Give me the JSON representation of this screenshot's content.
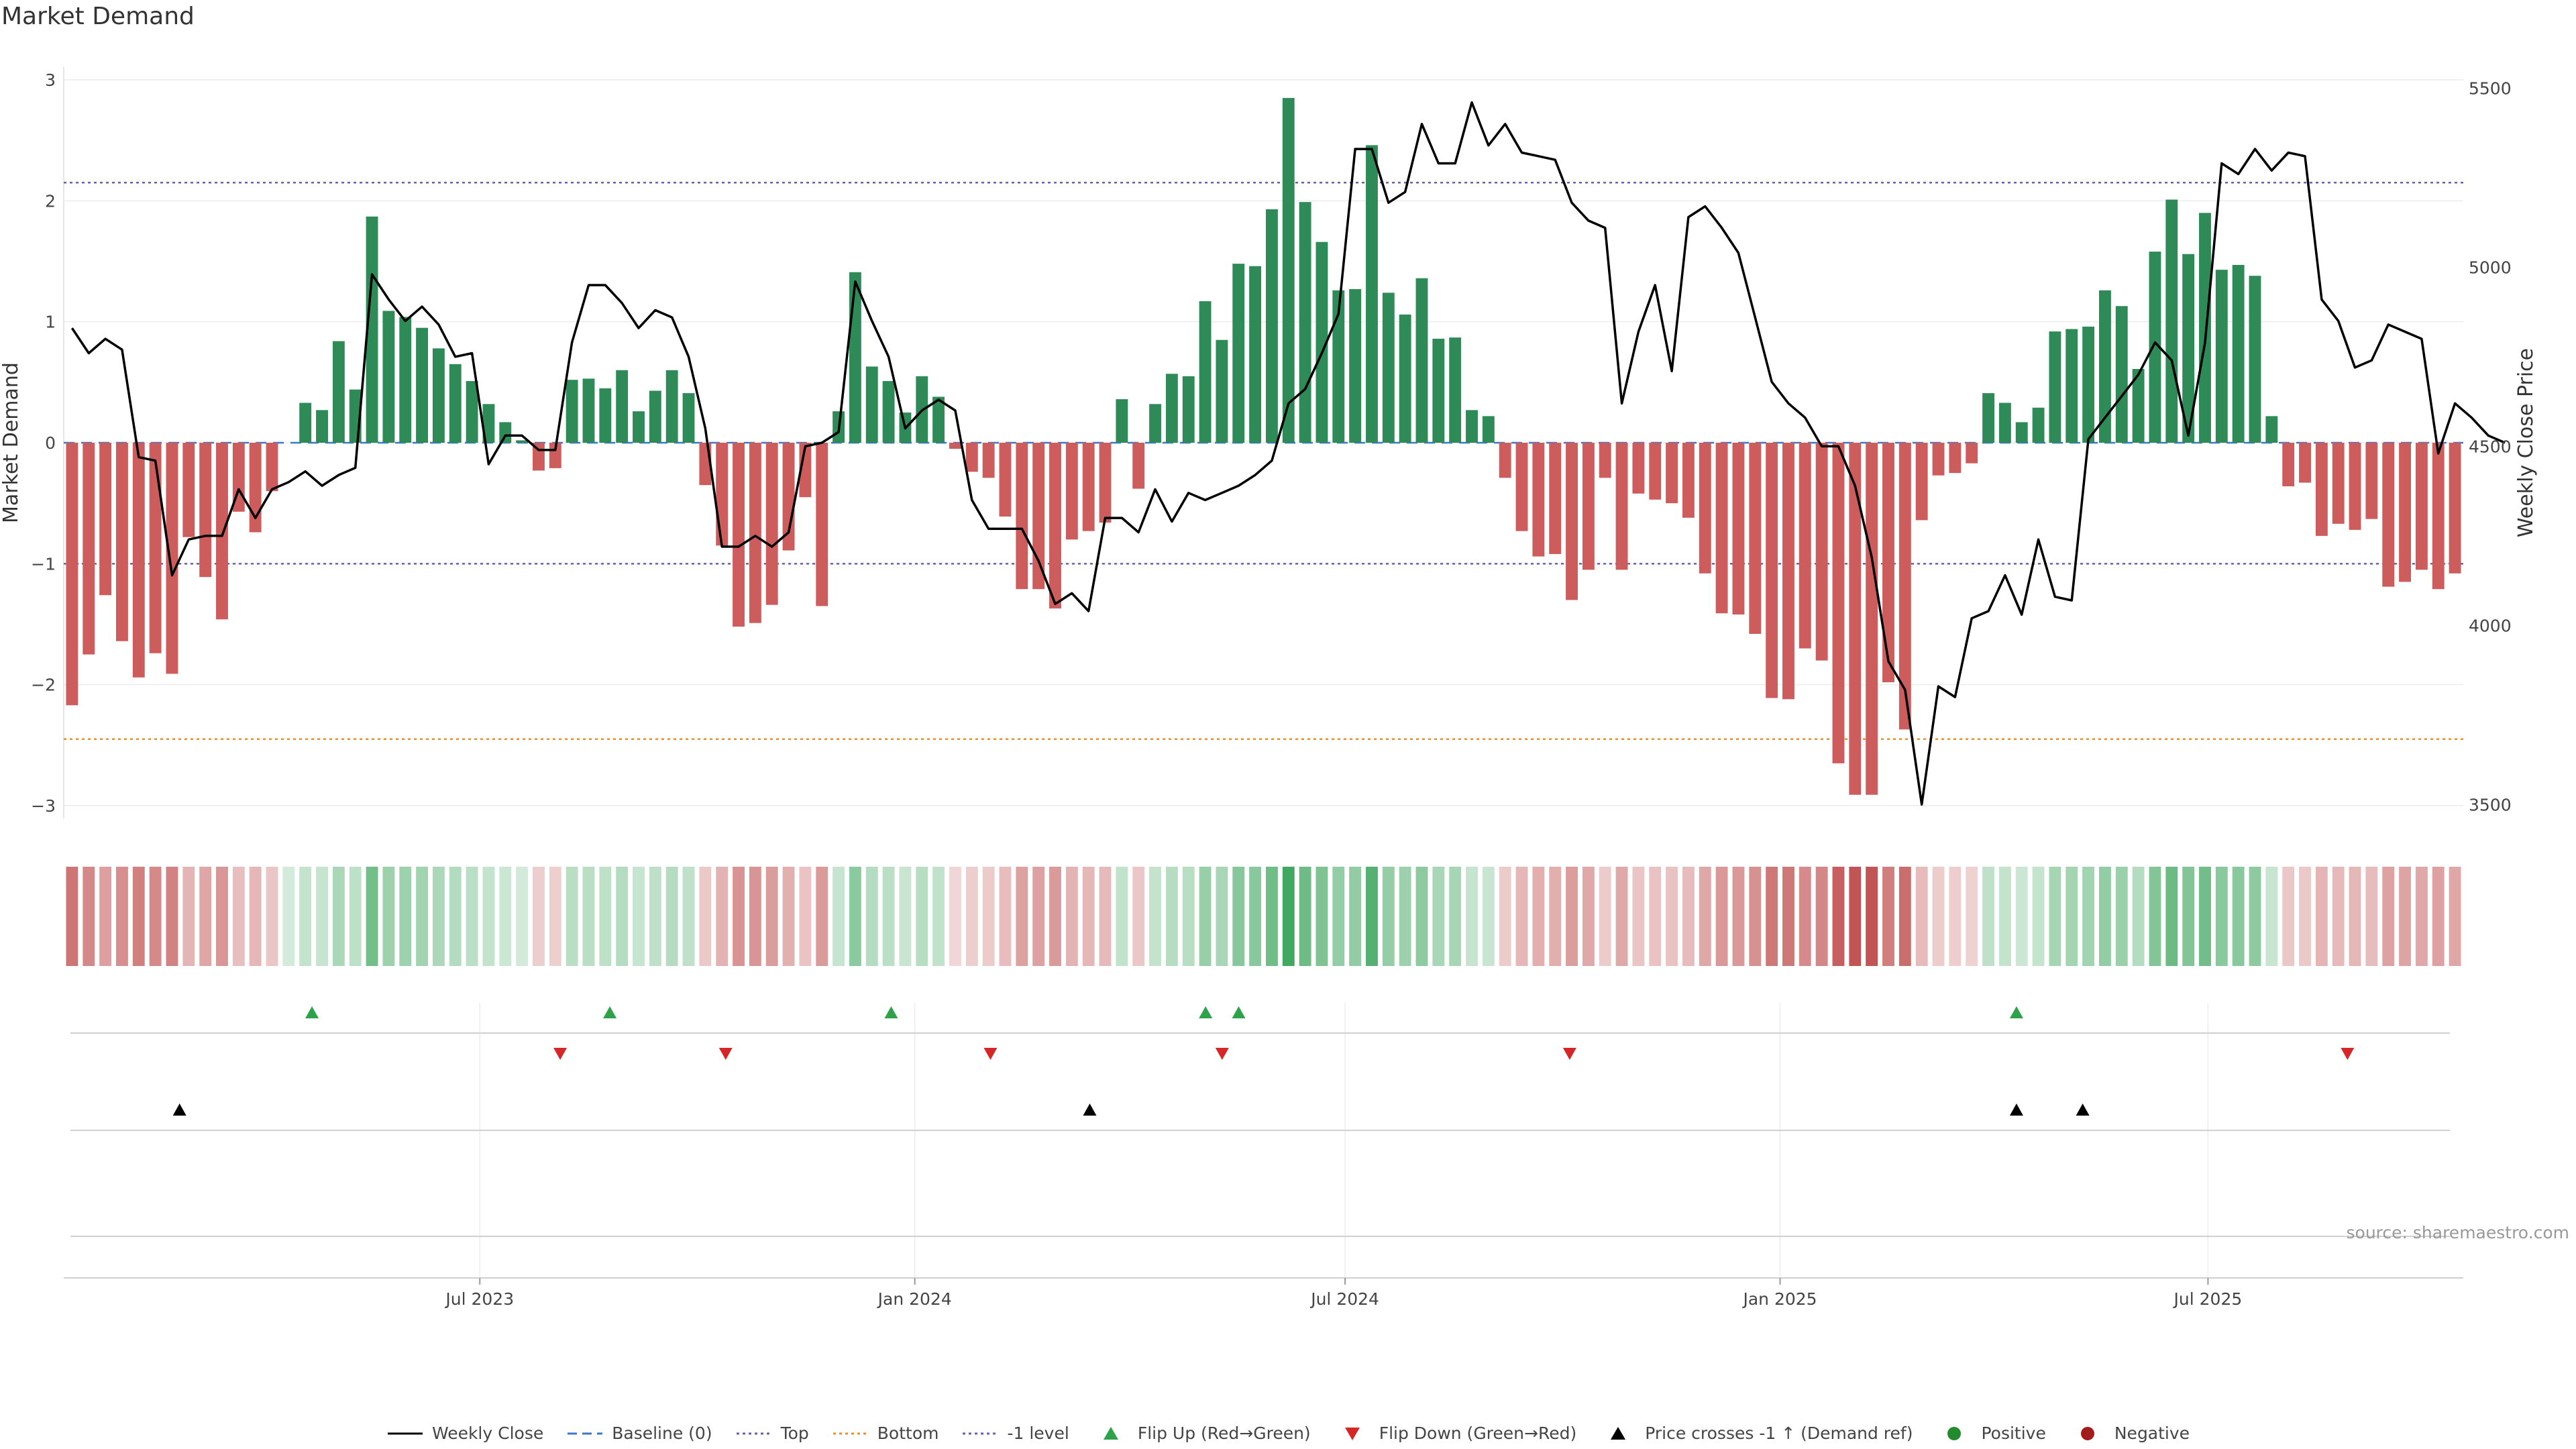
{
  "chart_data": {
    "type": "bar",
    "title": "Market Demand",
    "source": "source: sharemaestro.com",
    "left_axis": {
      "label": "Market Demand",
      "ylim": [
        -3.05,
        3.05
      ],
      "ticks": [
        3,
        2,
        1,
        0,
        -1,
        -2,
        -3
      ],
      "tick_labels": [
        "3",
        "2",
        "1",
        "0",
        "−1",
        "−2",
        "−3"
      ]
    },
    "right_axis": {
      "label": "Weekly Close Price",
      "ylim": [
        3480,
        5540
      ],
      "ticks": [
        5500,
        5000,
        4500,
        4000,
        3500
      ],
      "tick_labels": [
        "5500",
        "5000",
        "4500",
        "4000",
        "3500"
      ]
    },
    "x_axis": {
      "start": "2023-01-06",
      "end": "2025-10-17",
      "ticks": [
        "2023-07-01",
        "2024-01-01",
        "2024-07-01",
        "2025-01-01",
        "2025-07-01"
      ],
      "tick_labels": [
        "Jul 2023",
        "Jan 2024",
        "Jul 2024",
        "Jan 2025",
        "Jul 2025"
      ]
    },
    "reference_lines": [
      {
        "name": "Top",
        "value": 2.15,
        "color": "#6a5fb0",
        "style": "dotted"
      },
      {
        "name": "Bottom",
        "value": -2.45,
        "color": "#e8902a",
        "style": "dotted"
      },
      {
        "name": "-1 level",
        "value": -1.0,
        "color": "#6a5fb0",
        "style": "dotted"
      },
      {
        "name": "Baseline (0)",
        "value": 0,
        "color": "#3b78c9",
        "style": "dashed"
      }
    ],
    "series": [
      {
        "name": "Market Demand",
        "type": "bar",
        "positive_color": "#2e8b57",
        "negative_color": "#cd5c5c",
        "values": [
          -2.17,
          -1.75,
          -1.26,
          -1.64,
          -1.94,
          -1.74,
          -1.91,
          -0.78,
          -1.11,
          -1.46,
          -0.57,
          -0.74,
          -0.4,
          0.0,
          0.33,
          0.27,
          0.84,
          0.44,
          1.87,
          1.09,
          1.04,
          0.95,
          0.78,
          0.65,
          0.51,
          0.32,
          0.17,
          0.02,
          -0.23,
          -0.21,
          0.52,
          0.53,
          0.45,
          0.6,
          0.26,
          0.43,
          0.6,
          0.41,
          -0.35,
          -0.85,
          -1.52,
          -1.49,
          -1.34,
          -0.89,
          -0.45,
          -1.35,
          0.26,
          1.41,
          0.63,
          0.51,
          0.25,
          0.55,
          0.38,
          -0.05,
          -0.24,
          -0.29,
          -0.61,
          -1.21,
          -1.21,
          -1.37,
          -0.8,
          -0.73,
          -0.66,
          0.36,
          -0.38,
          0.32,
          0.57,
          0.55,
          1.17,
          0.85,
          1.48,
          1.46,
          1.93,
          2.85,
          1.99,
          1.66,
          1.26,
          1.27,
          2.46,
          1.24,
          1.06,
          1.36,
          0.86,
          0.87,
          0.27,
          0.22,
          -0.29,
          -0.73,
          -0.94,
          -0.92,
          -1.3,
          -1.05,
          -0.29,
          -1.05,
          -0.42,
          -0.47,
          -0.5,
          -0.62,
          -1.08,
          -1.41,
          -1.42,
          -1.58,
          -2.11,
          -2.12,
          -1.7,
          -1.8,
          -2.65,
          -2.91,
          -2.91,
          -1.98,
          -2.37,
          -0.64,
          -0.27,
          -0.25,
          -0.17,
          0.41,
          0.33,
          0.17,
          0.29,
          0.92,
          0.94,
          0.96,
          1.26,
          1.13,
          0.61,
          1.58,
          2.01,
          1.56,
          1.9,
          1.43,
          1.47,
          1.38,
          0.22,
          -0.36,
          -0.33,
          -0.77,
          -0.67,
          -0.72,
          -0.63,
          -1.19,
          -1.15,
          -1.05,
          -1.21,
          -1.08
        ]
      },
      {
        "name": "Weekly Close",
        "type": "line",
        "axis": "right",
        "color": "#000000",
        "values": [
          4830,
          4760,
          4800,
          4770,
          4470,
          4460,
          4140,
          4240,
          4250,
          4250,
          4380,
          4300,
          4380,
          4400,
          4430,
          4390,
          4420,
          4440,
          4980,
          4910,
          4850,
          4890,
          4840,
          4750,
          4760,
          4450,
          4530,
          4530,
          4490,
          4490,
          4790,
          4950,
          4950,
          4900,
          4830,
          4880,
          4860,
          4750,
          4550,
          4220,
          4220,
          4250,
          4220,
          4260,
          4500,
          4510,
          4540,
          4960,
          4850,
          4750,
          4550,
          4600,
          4630,
          4600,
          4350,
          4270,
          4270,
          4270,
          4180,
          4060,
          4090,
          4040,
          4300,
          4300,
          4260,
          4380,
          4290,
          4370,
          4350,
          4370,
          4390,
          4420,
          4460,
          4620,
          4660,
          4760,
          4870,
          5330,
          5330,
          5180,
          5210,
          5400,
          5290,
          5290,
          5460,
          5340,
          5400,
          5320,
          5310,
          5300,
          5180,
          5130,
          5110,
          4620,
          4820,
          4950,
          4710,
          5140,
          5170,
          5110,
          5040,
          4860,
          4680,
          4620,
          4580,
          4500,
          4500,
          4390,
          4190,
          3900,
          3820,
          3500,
          3830,
          3800,
          4020,
          4040,
          4140,
          4030,
          4240,
          4080,
          4070,
          4520,
          4580,
          4640,
          4700,
          4790,
          4740,
          4530,
          4790,
          5290,
          5260,
          5330,
          5270,
          5320,
          5310,
          4910,
          4850,
          4720,
          4740,
          4840,
          4820,
          4800,
          4480,
          4620,
          4580,
          4530,
          4510
        ]
      }
    ],
    "events": {
      "flip_up": [
        "2023-04-21",
        "2023-08-25",
        "2023-12-22",
        "2024-05-03",
        "2024-05-17",
        "2025-04-11"
      ],
      "flip_down": [
        "2023-08-04",
        "2023-10-13",
        "2024-02-02",
        "2024-05-10",
        "2024-10-04",
        "2025-08-29"
      ],
      "price_crosses": [
        "2023-02-24",
        "2024-03-15",
        "2025-04-11",
        "2025-05-09"
      ]
    },
    "legend": {
      "position": "bottom-center",
      "entries": [
        {
          "label": "Weekly Close",
          "icon": "solid-line",
          "color": "#000000"
        },
        {
          "label": "Baseline (0)",
          "icon": "dashed-line",
          "color": "#3b78c9"
        },
        {
          "label": "Top",
          "icon": "dotted-line",
          "color": "#6a5fb0"
        },
        {
          "label": "Bottom",
          "icon": "dotted-line",
          "color": "#e8902a"
        },
        {
          "label": "-1 level",
          "icon": "dotted-line",
          "color": "#6a5fb0"
        },
        {
          "label": "Flip Up (Red→Green)",
          "icon": "triangle-up",
          "color": "#2ea24a"
        },
        {
          "label": "Flip Down (Green→Red)",
          "icon": "triangle-down",
          "color": "#d62728"
        },
        {
          "label": "Price crosses -1 ↑ (Demand ref)",
          "icon": "triangle-up",
          "color": "#000000"
        },
        {
          "label": "Positive",
          "icon": "circle",
          "color": "#238b2e"
        },
        {
          "label": "Negative",
          "icon": "circle",
          "color": "#a31c1c"
        }
      ]
    }
  }
}
